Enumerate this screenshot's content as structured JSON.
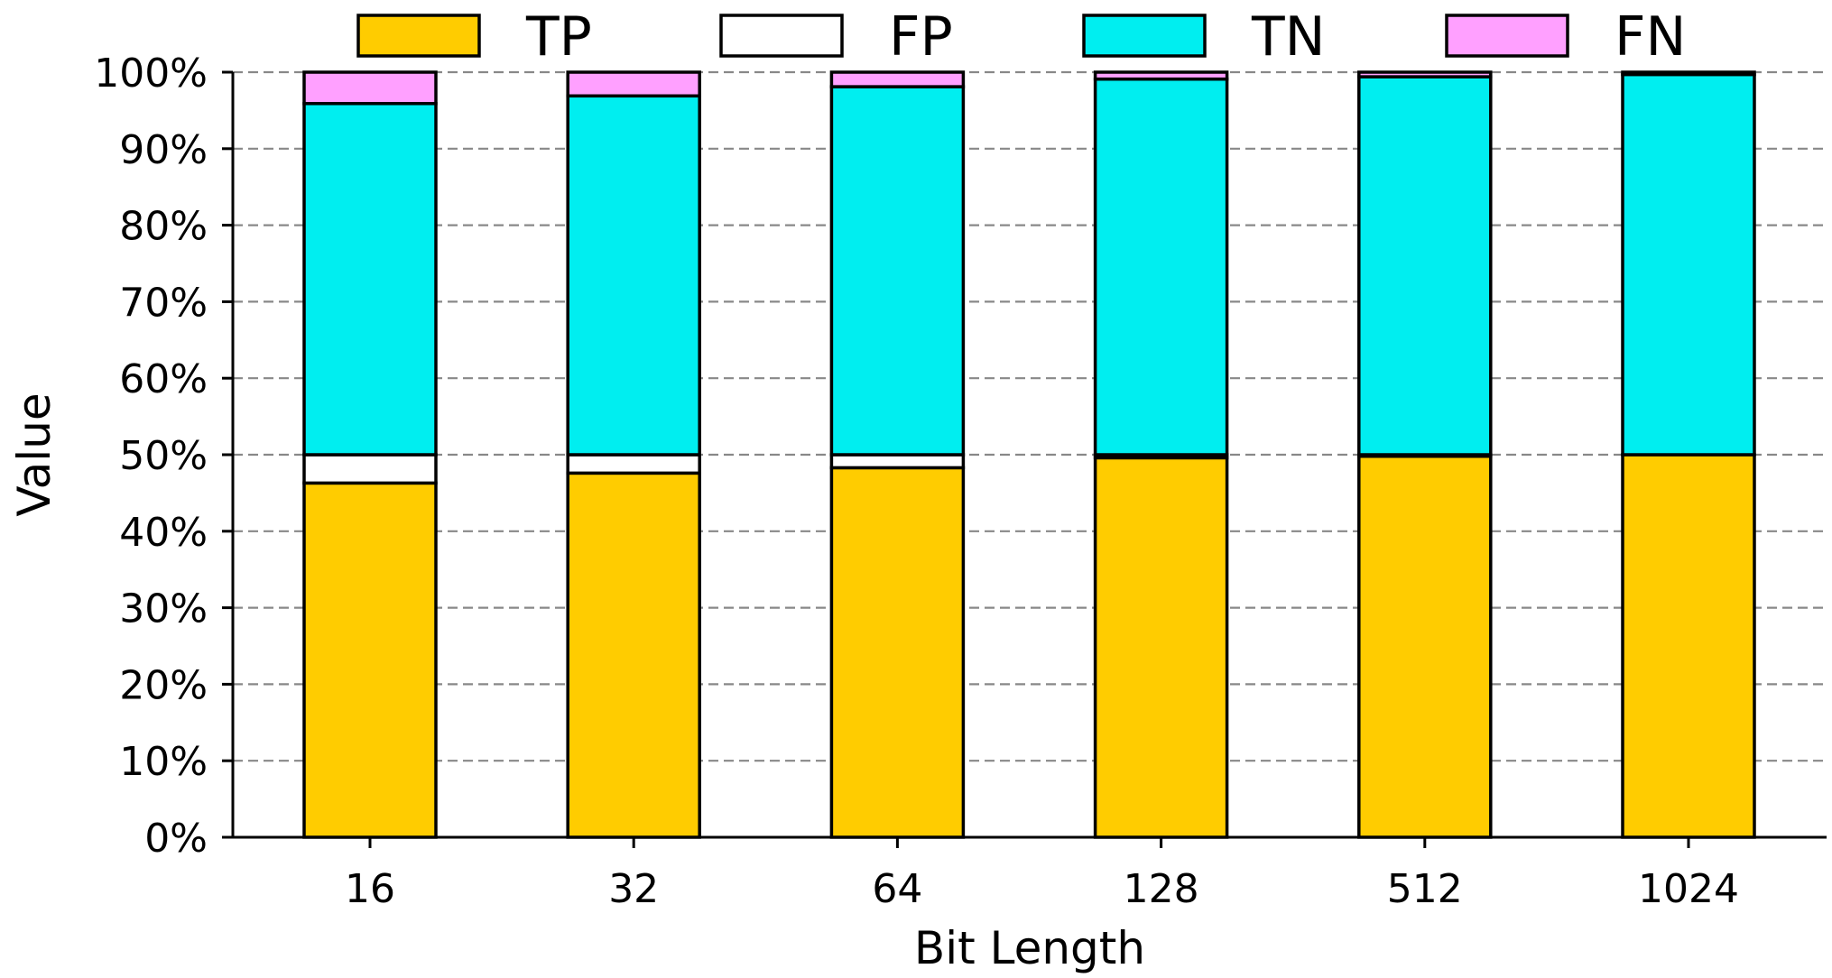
{
  "chart_data": {
    "type": "bar",
    "stacked": true,
    "title": "",
    "xlabel": "Bit Length",
    "ylabel": "Value",
    "categories": [
      "16",
      "32",
      "64",
      "128",
      "512",
      "1024"
    ],
    "series": [
      {
        "name": "TP",
        "color": "#ffcc00",
        "values": [
          46.3,
          47.6,
          48.3,
          49.6,
          49.8,
          50.0
        ]
      },
      {
        "name": "FP",
        "color": "#ffffff",
        "values": [
          3.7,
          2.4,
          1.7,
          0.4,
          0.2,
          0.0
        ]
      },
      {
        "name": "TN",
        "color": "#00eef0",
        "values": [
          45.9,
          46.9,
          48.1,
          49.1,
          49.4,
          49.7
        ]
      },
      {
        "name": "FN",
        "color": "#ffa0ff",
        "values": [
          4.1,
          3.1,
          1.9,
          0.9,
          0.6,
          0.3
        ]
      }
    ],
    "ylim": [
      0,
      100
    ],
    "yticks": [
      "0%",
      "10%",
      "20%",
      "30%",
      "40%",
      "50%",
      "60%",
      "70%",
      "80%",
      "90%",
      "100%"
    ],
    "grid": "horizontal dashed",
    "legend": "top, horizontal"
  }
}
